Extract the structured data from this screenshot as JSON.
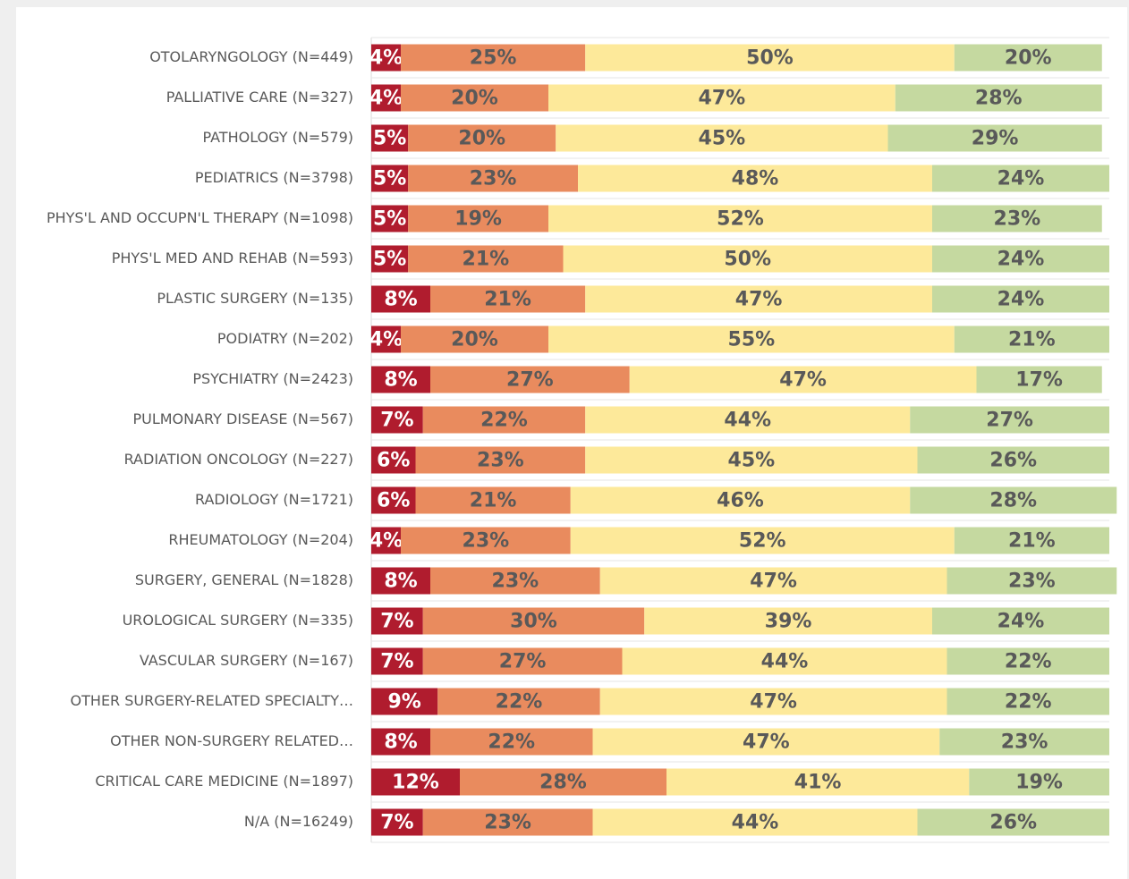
{
  "chart_data": {
    "type": "stacked_barh",
    "categories": [
      "OTOLARYNGOLOGY (N=449)",
      "PALLIATIVE CARE (N=327)",
      "PATHOLOGY (N=579)",
      "PEDIATRICS (N=3798)",
      "PHYS'L AND OCCUPN'L THERAPY (N=1098)",
      "PHYS'L MED AND REHAB (N=593)",
      "PLASTIC SURGERY (N=135)",
      "PODIATRY (N=202)",
      "PSYCHIATRY (N=2423)",
      "PULMONARY DISEASE (N=567)",
      "RADIATION ONCOLOGY (N=227)",
      "RADIOLOGY (N=1721)",
      "RHEUMATOLOGY (N=204)",
      "SURGERY, GENERAL (N=1828)",
      "UROLOGICAL SURGERY (N=335)",
      "VASCULAR SURGERY (N=167)",
      "OTHER SURGERY-RELATED SPECIALTY…",
      "OTHER NON-SURGERY RELATED…",
      "CRITICAL CARE MEDICINE (N=1897)",
      "N/A (N=16249)"
    ],
    "series": [
      {
        "color": "#b01c2e",
        "values": [
          4,
          4,
          5,
          5,
          5,
          5,
          8,
          4,
          8,
          7,
          6,
          6,
          4,
          8,
          7,
          7,
          9,
          8,
          12,
          7
        ],
        "value_labels": [
          "4%",
          "4%",
          "5%",
          "5%",
          "5%",
          "5%",
          "8%",
          "4%",
          "8%",
          "7%",
          "6%",
          "6%",
          "4%",
          "8%",
          "7%",
          "7%",
          "9%",
          "8%",
          "12%",
          "7%"
        ]
      },
      {
        "color": "#e98b5e",
        "values": [
          25,
          20,
          20,
          23,
          19,
          21,
          21,
          20,
          27,
          22,
          23,
          21,
          23,
          23,
          30,
          27,
          22,
          22,
          28,
          23
        ],
        "value_labels": [
          "25%",
          "20%",
          "20%",
          "23%",
          "19%",
          "21%",
          "21%",
          "20%",
          "27%",
          "22%",
          "23%",
          "21%",
          "23%",
          "23%",
          "30%",
          "27%",
          "22%",
          "22%",
          "28%",
          "23%"
        ]
      },
      {
        "color": "#fde99a",
        "values": [
          50,
          47,
          45,
          48,
          52,
          50,
          47,
          55,
          47,
          44,
          45,
          46,
          52,
          47,
          39,
          44,
          47,
          47,
          41,
          44
        ],
        "value_labels": [
          "50%",
          "47%",
          "45%",
          "48%",
          "52%",
          "50%",
          "47%",
          "55%",
          "47%",
          "44%",
          "45%",
          "46%",
          "52%",
          "47%",
          "39%",
          "44%",
          "47%",
          "47%",
          "41%",
          "44%"
        ]
      },
      {
        "color": "#c5d9a0",
        "values": [
          20,
          28,
          29,
          24,
          23,
          24,
          24,
          21,
          17,
          27,
          26,
          28,
          21,
          23,
          24,
          22,
          22,
          23,
          19,
          26
        ],
        "value_labels": [
          "20%",
          "28%",
          "29%",
          "24%",
          "23%",
          "24%",
          "24%",
          "21%",
          "17%",
          "27%",
          "26%",
          "28%",
          "21%",
          "23%",
          "24%",
          "22%",
          "22%",
          "23%",
          "19%",
          "26%"
        ]
      }
    ],
    "xlim": [
      0,
      100
    ]
  }
}
